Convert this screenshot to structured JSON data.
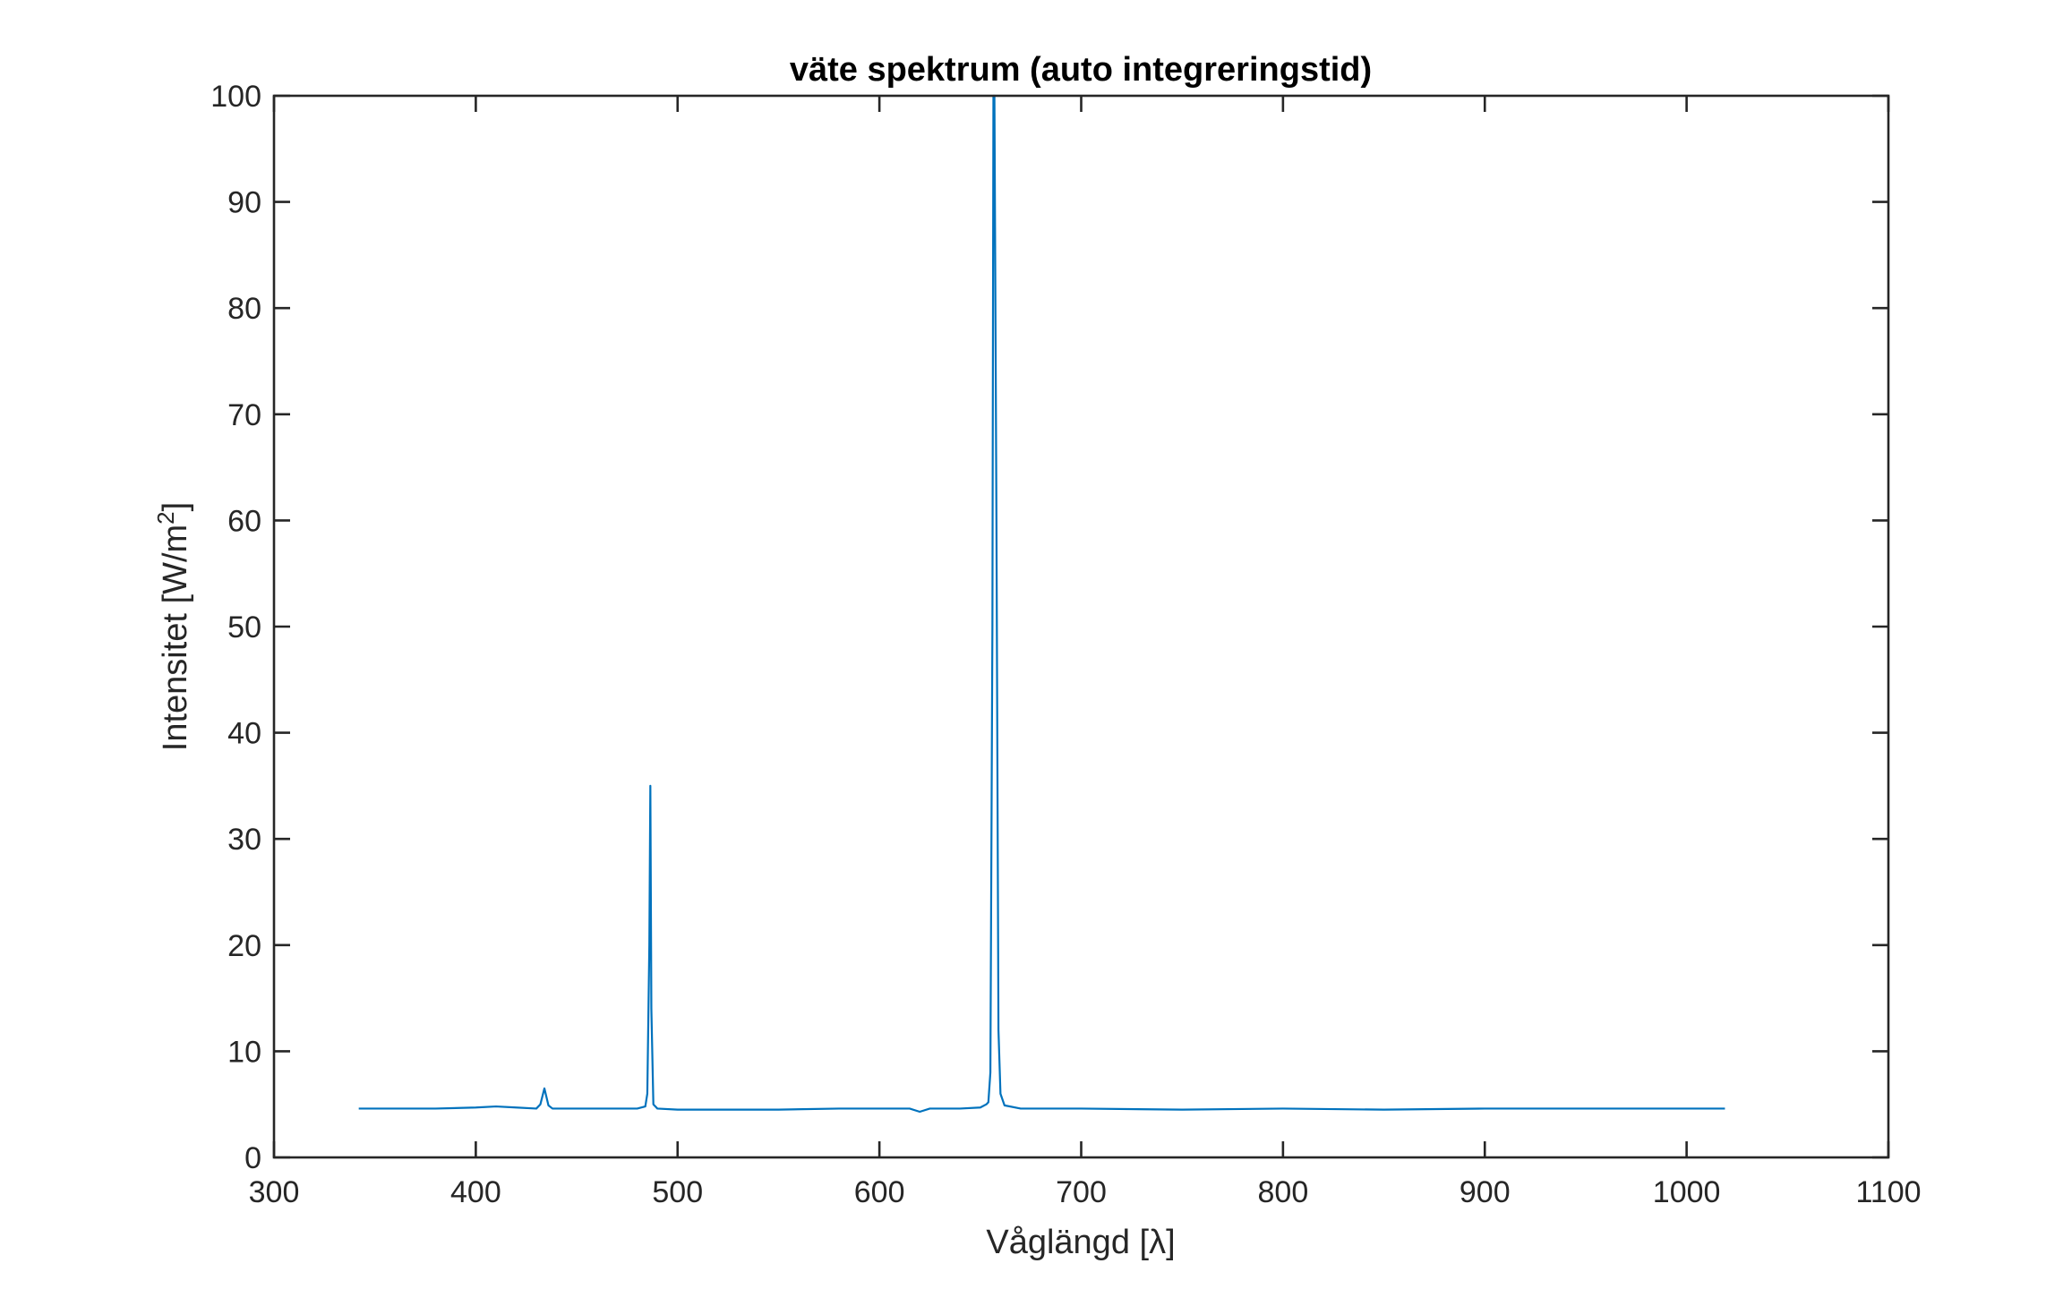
{
  "chart_data": {
    "type": "line",
    "title": "väte spektrum (auto integreringstid)",
    "xlabel": "Våglängd [λ]",
    "ylabel": "Intensitet [W/m2]",
    "xlim": [
      300,
      1100
    ],
    "ylim": [
      0,
      100
    ],
    "xticks": [
      "300",
      "400",
      "500",
      "600",
      "700",
      "800",
      "900",
      "1000",
      "1100"
    ],
    "yticks": [
      "0",
      "10",
      "20",
      "30",
      "40",
      "50",
      "60",
      "70",
      "80",
      "90",
      "100"
    ],
    "grid": false,
    "line_color": "#0072BD",
    "series": [
      {
        "x": [
          342,
          360,
          380,
          400,
          410,
          420,
          430,
          432,
          434,
          436,
          438,
          450,
          470,
          480,
          484,
          485,
          486,
          486.5,
          487,
          488,
          490,
          500,
          520,
          550,
          580,
          600,
          615,
          620,
          625,
          640,
          650,
          653,
          654,
          655,
          656,
          656.5,
          657,
          658,
          659,
          660,
          662,
          670,
          700,
          750,
          800,
          850,
          900,
          950,
          1000,
          1019
        ],
        "y": [
          4.6,
          4.6,
          4.6,
          4.7,
          4.8,
          4.7,
          4.6,
          5.0,
          6.5,
          4.9,
          4.6,
          4.6,
          4.6,
          4.6,
          4.8,
          6.0,
          20.0,
          35.0,
          14.0,
          5.0,
          4.6,
          4.5,
          4.5,
          4.5,
          4.6,
          4.6,
          4.6,
          4.3,
          4.6,
          4.6,
          4.7,
          5.0,
          5.2,
          8.0,
          50.0,
          100.0,
          100.0,
          60.0,
          12.0,
          6.0,
          4.9,
          4.6,
          4.6,
          4.5,
          4.6,
          4.5,
          4.6,
          4.6,
          4.6,
          4.6
        ]
      }
    ]
  }
}
